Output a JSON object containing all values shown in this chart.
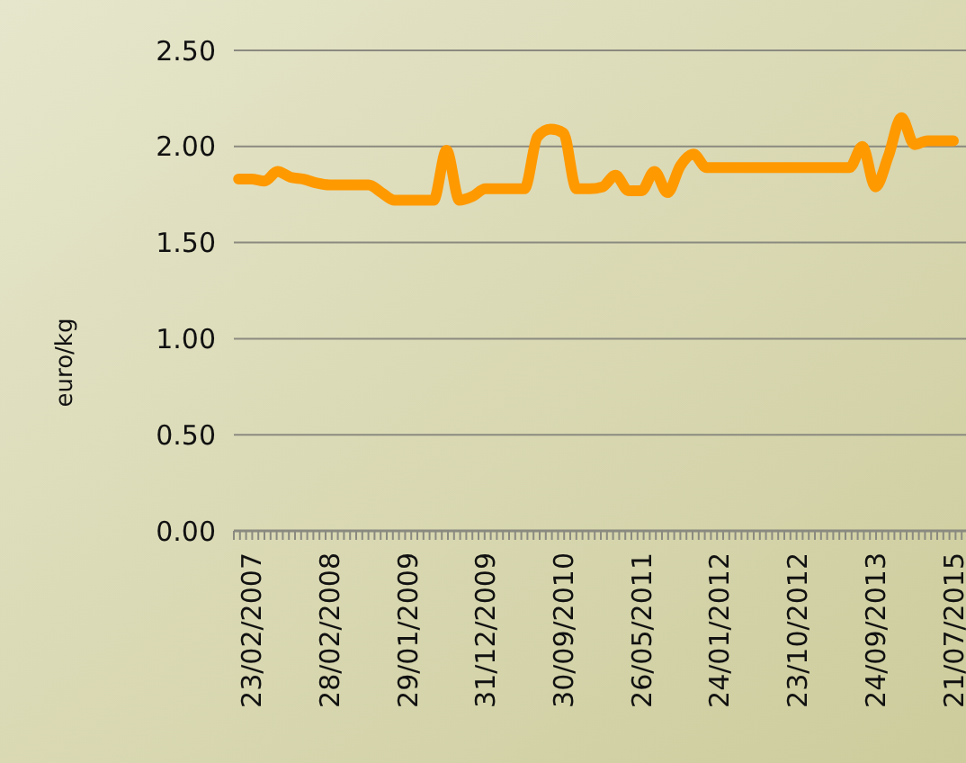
{
  "chart_data": {
    "type": "line",
    "ylabel": "euro/kg",
    "categories": [
      null,
      "23/02/2007",
      null,
      null,
      null,
      null,
      null,
      "28/02/2008",
      null,
      null,
      null,
      null,
      null,
      "29/01/2009",
      null,
      null,
      null,
      null,
      null,
      "31/12/2009",
      null,
      null,
      null,
      null,
      null,
      "30/09/2010",
      null,
      null,
      null,
      null,
      null,
      "26/05/2011",
      null,
      null,
      null,
      null,
      null,
      "24/01/2012",
      null,
      null,
      null,
      null,
      null,
      "23/10/2012",
      null,
      null,
      null,
      null,
      null,
      "24/09/2013",
      null,
      null,
      null,
      null,
      null,
      "21/07/2015"
    ],
    "series": [
      {
        "color": "#ff9900",
        "values": [
          1.83,
          1.83,
          1.82,
          1.87,
          1.84,
          1.83,
          1.81,
          1.8,
          1.8,
          1.8,
          1.8,
          1.76,
          1.72,
          1.72,
          1.72,
          1.72,
          1.98,
          1.72,
          1.74,
          1.78,
          1.78,
          1.78,
          1.78,
          2.05,
          2.09,
          2.07,
          1.78,
          1.78,
          1.79,
          1.85,
          1.77,
          1.77,
          1.87,
          1.76,
          1.9,
          1.96,
          1.89,
          1.89,
          1.89,
          1.89,
          1.89,
          1.89,
          1.89,
          1.89,
          1.89,
          1.89,
          1.89,
          1.89,
          2.0,
          1.79,
          1.95,
          2.15,
          2.01,
          2.03,
          2.03,
          2.03
        ]
      }
    ],
    "ylim": [
      0,
      2.5
    ],
    "yticks": [
      {
        "value": 0,
        "label": "0.00"
      },
      {
        "value": 0.5,
        "label": "0.50"
      },
      {
        "value": 1,
        "label": "1.00"
      },
      {
        "value": 1.5,
        "label": "1.50"
      },
      {
        "value": 2,
        "label": "2.00"
      },
      {
        "value": 2.5,
        "label": "2.50"
      }
    ],
    "grid": "y",
    "line_style": "solid",
    "marker": "none"
  }
}
